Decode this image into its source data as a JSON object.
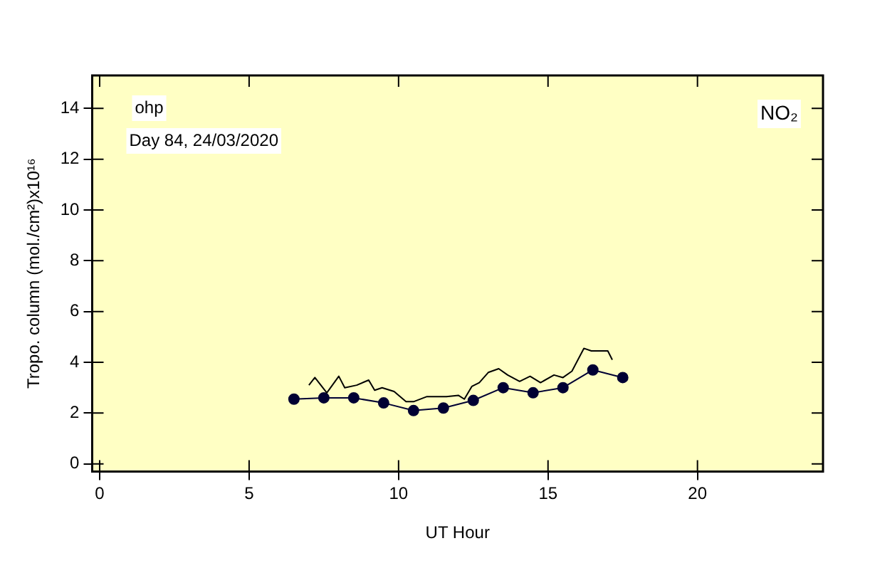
{
  "chart_data": {
    "type": "line",
    "xlabel": "UT Hour",
    "ylabel": "Tropo. column (mol./cm²)x10¹⁶",
    "annotations": [
      "ohp",
      "Day 84, 24/03/2020",
      "NO₂"
    ],
    "series": [
      {
        "color": "#000000",
        "marker": "none",
        "x": [
          7.0,
          7.2,
          7.6,
          8.0,
          8.2,
          8.6,
          9.0,
          9.2,
          9.45,
          9.85,
          10.25,
          10.5,
          10.95,
          11.6,
          12.0,
          12.2,
          12.45,
          12.7,
          13.0,
          13.35,
          13.65,
          14.05,
          14.4,
          14.75,
          15.2,
          15.5,
          15.8,
          16.2,
          16.45,
          17.0,
          17.15
        ],
        "values": [
          3.1,
          3.4,
          2.8,
          3.45,
          3.0,
          3.1,
          3.3,
          2.9,
          3.0,
          2.85,
          2.45,
          2.45,
          2.65,
          2.65,
          2.7,
          2.55,
          3.05,
          3.2,
          3.6,
          3.75,
          3.5,
          3.25,
          3.45,
          3.2,
          3.5,
          3.4,
          3.65,
          4.55,
          4.45,
          4.45,
          4.1
        ]
      },
      {
        "color": "#000033",
        "marker": "circle",
        "x": [
          6.5,
          7.5,
          8.5,
          9.5,
          10.5,
          11.5,
          12.5,
          13.5,
          14.5,
          15.5,
          16.5,
          17.5
        ],
        "values": [
          2.55,
          2.6,
          2.6,
          2.4,
          2.1,
          2.2,
          2.5,
          3.0,
          2.8,
          3.0,
          3.7,
          3.4
        ]
      }
    ],
    "xlim": [
      -0.25,
      24.2
    ],
    "xticks": [
      0,
      5,
      10,
      15,
      20
    ],
    "ylim": [
      -0.3,
      15.3
    ],
    "yticks": [
      0,
      2,
      4,
      6,
      8,
      10,
      12,
      14
    ],
    "grid": false,
    "legend": false
  }
}
